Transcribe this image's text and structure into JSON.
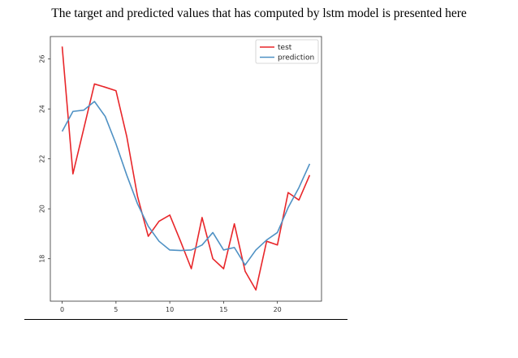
{
  "caption": "The target and predicted values that has computed by lstm model is presented here",
  "chart_data": {
    "type": "line",
    "title": "",
    "xlabel": "",
    "ylabel": "",
    "xlim": [
      -1.1,
      24.1
    ],
    "ylim": [
      16.3,
      26.9
    ],
    "xticks": [
      0,
      5,
      10,
      15,
      20
    ],
    "yticks": [
      18,
      20,
      22,
      24,
      26
    ],
    "grid": false,
    "legend": "top-right",
    "x": [
      0,
      1,
      2,
      3,
      4,
      5,
      6,
      7,
      8,
      9,
      10,
      11,
      12,
      13,
      14,
      15,
      16,
      17,
      18,
      19,
      20,
      21,
      22,
      23
    ],
    "series": [
      {
        "name": "test",
        "color": "#e8262a",
        "values": [
          26.5,
          21.4,
          23.2,
          25.0,
          24.87,
          24.73,
          22.9,
          20.5,
          18.9,
          19.5,
          19.75,
          18.7,
          17.6,
          19.65,
          18.0,
          17.6,
          19.4,
          17.5,
          16.75,
          18.7,
          18.55,
          20.65,
          20.35,
          21.35
        ]
      },
      {
        "name": "prediction",
        "color": "#4f91c4",
        "values": [
          23.1,
          23.9,
          23.95,
          24.3,
          23.7,
          22.6,
          21.35,
          20.2,
          19.3,
          18.7,
          18.35,
          18.33,
          18.35,
          18.55,
          19.05,
          18.35,
          18.45,
          17.75,
          18.35,
          18.75,
          19.05,
          20.05,
          20.85,
          21.8
        ]
      }
    ]
  }
}
